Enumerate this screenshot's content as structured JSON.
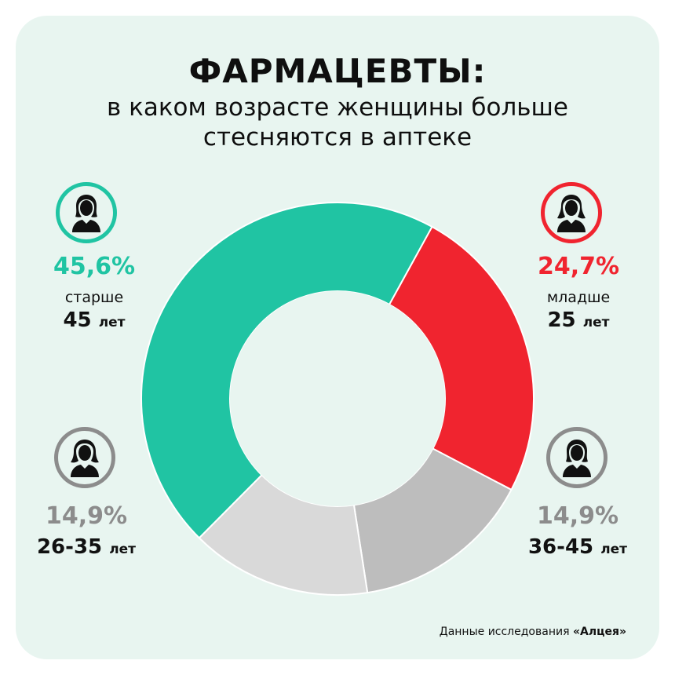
{
  "title": "ФАРМАЦЕВТЫ:",
  "subtitle_line1": "в каком возрасте женщины больше",
  "subtitle_line2": "стесняются в аптеке",
  "labels": {
    "over45": {
      "pct": "45,6%",
      "desc": "старше",
      "age": "45",
      "unit": "лет"
    },
    "under25": {
      "pct": "24,7%",
      "desc": "младше",
      "age": "25",
      "unit": "лет"
    },
    "a26_35": {
      "pct": "14,9%",
      "age": "26-35",
      "unit": "лет"
    },
    "a36_45": {
      "pct": "14,9%",
      "age": "36-45",
      "unit": "лет"
    }
  },
  "source": {
    "prefix": "Данные исследования ",
    "brand": "«Алцея»"
  },
  "colors": {
    "teal": "#20c4a3",
    "red": "#f0242f",
    "light_gray": "#d9d9d9",
    "mid_gray": "#bdbdbd",
    "label_gray": "#8c8c8c",
    "background": "#e8f5f0"
  },
  "icons": [
    "woman-icon"
  ],
  "chart_data": {
    "type": "pie",
    "donut": true,
    "categories": [
      "младше 25 лет",
      "36-45 лет",
      "26-35 лет",
      "старше 45 лет"
    ],
    "values": [
      24.7,
      14.9,
      14.9,
      45.6
    ],
    "colors": [
      "#f0242f",
      "#bdbdbd",
      "#d9d9d9",
      "#20c4a3"
    ]
  }
}
